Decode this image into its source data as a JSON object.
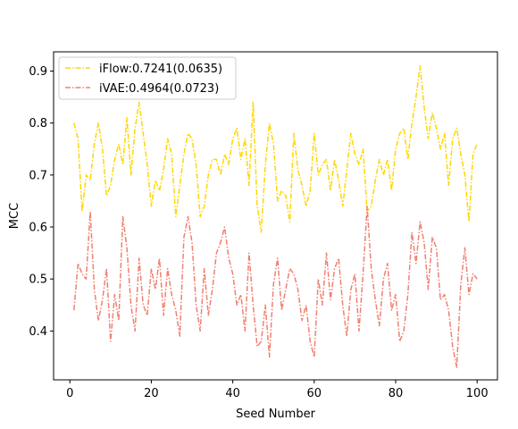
{
  "chart_data": {
    "type": "line",
    "xlabel": "Seed Number",
    "ylabel": "MCC",
    "xlim": [
      -4,
      105
    ],
    "ylim": [
      0.306,
      0.937
    ],
    "xticks": [
      0,
      20,
      40,
      60,
      80,
      100
    ],
    "yticks": [
      0.4,
      0.5,
      0.6,
      0.7,
      0.8,
      0.9
    ],
    "grid": false,
    "legend_position": "top-left",
    "x": [
      1,
      2,
      3,
      4,
      5,
      6,
      7,
      8,
      9,
      10,
      11,
      12,
      13,
      14,
      15,
      16,
      17,
      18,
      19,
      20,
      21,
      22,
      23,
      24,
      25,
      26,
      27,
      28,
      29,
      30,
      31,
      32,
      33,
      34,
      35,
      36,
      37,
      38,
      39,
      40,
      41,
      42,
      43,
      44,
      45,
      46,
      47,
      48,
      49,
      50,
      51,
      52,
      53,
      54,
      55,
      56,
      57,
      58,
      59,
      60,
      61,
      62,
      63,
      64,
      65,
      66,
      67,
      68,
      69,
      70,
      71,
      72,
      73,
      74,
      75,
      76,
      77,
      78,
      79,
      80,
      81,
      82,
      83,
      84,
      85,
      86,
      87,
      88,
      89,
      90,
      91,
      92,
      93,
      94,
      95,
      96,
      97,
      98,
      99,
      100
    ],
    "series": [
      {
        "name": "iFlow:0.7241(0.0635)",
        "color": "#FFD700",
        "values": [
          0.8,
          0.77,
          0.63,
          0.7,
          0.69,
          0.76,
          0.8,
          0.75,
          0.66,
          0.68,
          0.73,
          0.76,
          0.72,
          0.81,
          0.7,
          0.79,
          0.84,
          0.78,
          0.72,
          0.64,
          0.69,
          0.67,
          0.71,
          0.77,
          0.74,
          0.62,
          0.68,
          0.74,
          0.78,
          0.77,
          0.72,
          0.62,
          0.64,
          0.7,
          0.73,
          0.73,
          0.7,
          0.74,
          0.72,
          0.77,
          0.79,
          0.73,
          0.77,
          0.68,
          0.84,
          0.64,
          0.59,
          0.72,
          0.8,
          0.76,
          0.65,
          0.67,
          0.66,
          0.61,
          0.78,
          0.71,
          0.68,
          0.64,
          0.67,
          0.78,
          0.7,
          0.72,
          0.73,
          0.67,
          0.73,
          0.69,
          0.64,
          0.71,
          0.78,
          0.74,
          0.72,
          0.75,
          0.63,
          0.64,
          0.69,
          0.73,
          0.7,
          0.73,
          0.67,
          0.75,
          0.78,
          0.79,
          0.73,
          0.8,
          0.85,
          0.91,
          0.83,
          0.77,
          0.82,
          0.79,
          0.75,
          0.78,
          0.68,
          0.77,
          0.79,
          0.74,
          0.7,
          0.61,
          0.74,
          0.76
        ]
      },
      {
        "name": "iVAE:0.4964(0.0723)",
        "color": "#F08070",
        "values": [
          0.44,
          0.53,
          0.51,
          0.5,
          0.63,
          0.48,
          0.42,
          0.46,
          0.52,
          0.38,
          0.47,
          0.42,
          0.62,
          0.56,
          0.45,
          0.4,
          0.54,
          0.45,
          0.43,
          0.52,
          0.48,
          0.54,
          0.43,
          0.52,
          0.47,
          0.44,
          0.39,
          0.58,
          0.62,
          0.57,
          0.45,
          0.4,
          0.52,
          0.43,
          0.48,
          0.55,
          0.57,
          0.6,
          0.54,
          0.51,
          0.45,
          0.47,
          0.4,
          0.55,
          0.45,
          0.37,
          0.38,
          0.45,
          0.35,
          0.49,
          0.54,
          0.44,
          0.48,
          0.52,
          0.51,
          0.48,
          0.42,
          0.45,
          0.38,
          0.35,
          0.5,
          0.45,
          0.55,
          0.46,
          0.52,
          0.54,
          0.45,
          0.39,
          0.48,
          0.51,
          0.4,
          0.51,
          0.64,
          0.52,
          0.46,
          0.41,
          0.5,
          0.53,
          0.44,
          0.47,
          0.38,
          0.4,
          0.47,
          0.59,
          0.53,
          0.61,
          0.57,
          0.48,
          0.58,
          0.56,
          0.46,
          0.47,
          0.44,
          0.37,
          0.33,
          0.49,
          0.56,
          0.47,
          0.51,
          0.5
        ]
      }
    ]
  }
}
